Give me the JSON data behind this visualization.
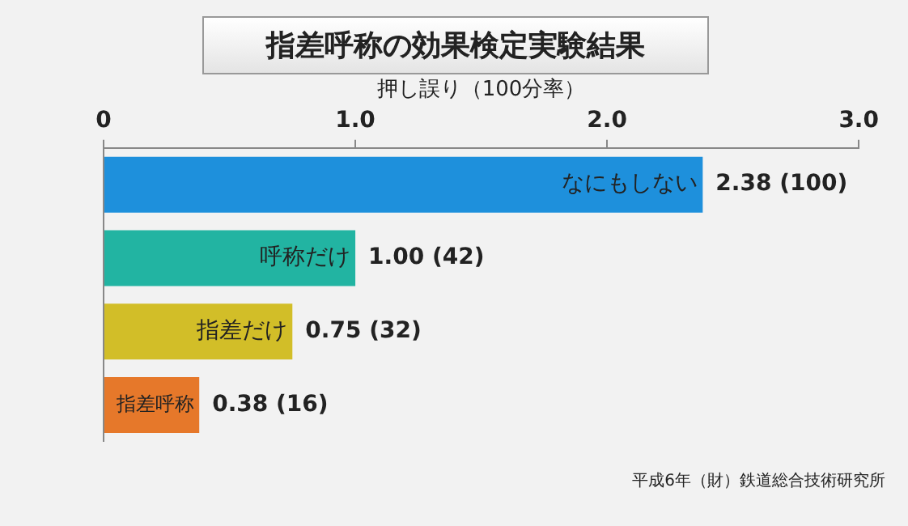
{
  "chart_data": {
    "type": "bar",
    "orientation": "horizontal",
    "title": "指差呼称の効果検定実験結果",
    "xlabel": "押し誤り（100分率）",
    "categories": [
      "なにもしない",
      "呼称だけ",
      "指差だけ",
      "指差呼称"
    ],
    "values": [
      2.38,
      1.0,
      0.75,
      0.38
    ],
    "colors": [
      "#1e90dc",
      "#22b4a2",
      "#d2be28",
      "#e6782a"
    ],
    "value_labels": [
      "2.38 (100)",
      "1.00 (42)",
      "0.75 (32)",
      "0.38 (16)"
    ],
    "xlim": [
      0,
      3
    ],
    "xticks": [
      {
        "value": 0,
        "label": "0"
      },
      {
        "value": 1,
        "label": "1.0"
      },
      {
        "value": 2,
        "label": "2.0"
      },
      {
        "value": 3,
        "label": "3.0"
      }
    ],
    "grid": false,
    "annotations": [
      "平成6年（財）鉄道総合技術研究所"
    ]
  }
}
